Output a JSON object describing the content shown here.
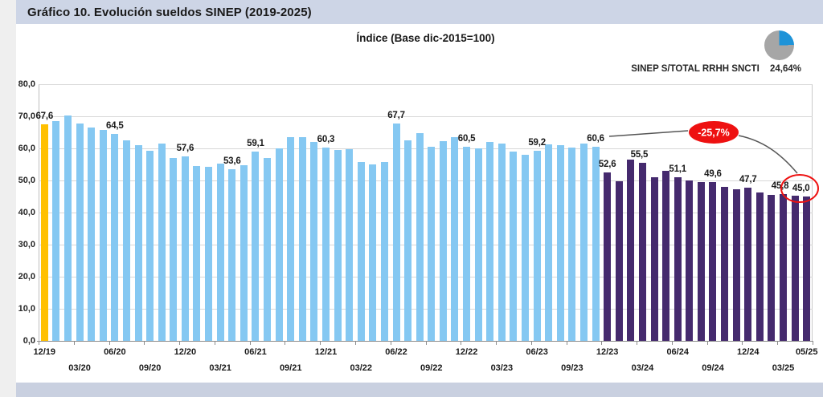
{
  "header": {
    "title": "Gráfico 10. Evolución sueldos SINEP (2019-2025)"
  },
  "note": {
    "label": "SINEP S/TOTAL RRHH SNCTI",
    "value": "24,64%"
  },
  "pie_icon": {
    "percent": 24.64,
    "accent_color": "#1e93d8",
    "base_color": "#a6a6a6"
  },
  "colors": {
    "first_bar": "#ffc000",
    "blue_bars": "#85c8f2",
    "purple_bars": "#452a6e",
    "annotation_red": "#ee1111",
    "connector": "#555555"
  },
  "chart_data": {
    "type": "bar",
    "title": "Índice (Base dic-2015=100)",
    "ylim": [
      0,
      80
    ],
    "grid": true,
    "y_tick_labels": [
      "80,0",
      "70,0",
      "60,0",
      "50,0",
      "40,0",
      "30,0",
      "20,0",
      "10,0",
      "0,0"
    ],
    "y_tick_values": [
      80,
      70,
      60,
      50,
      40,
      30,
      20,
      10,
      0
    ],
    "months": [
      "12/19",
      "01/20",
      "02/20",
      "03/20",
      "04/20",
      "05/20",
      "06/20",
      "07/20",
      "08/20",
      "09/20",
      "10/20",
      "11/20",
      "12/20",
      "01/21",
      "02/21",
      "03/21",
      "04/21",
      "05/21",
      "06/21",
      "07/21",
      "08/21",
      "09/21",
      "10/21",
      "11/21",
      "12/21",
      "01/22",
      "02/22",
      "03/22",
      "04/22",
      "05/22",
      "06/22",
      "07/22",
      "08/22",
      "09/22",
      "10/22",
      "11/22",
      "12/22",
      "01/23",
      "02/23",
      "03/23",
      "04/23",
      "05/23",
      "06/23",
      "07/23",
      "08/23",
      "09/23",
      "10/23",
      "11/23",
      "12/23",
      "01/24",
      "02/24",
      "03/24",
      "04/24",
      "05/24",
      "06/24",
      "07/24",
      "08/24",
      "09/24",
      "10/24",
      "11/24",
      "12/24",
      "01/25",
      "02/25",
      "03/25",
      "04/25",
      "05/25"
    ],
    "values": [
      67.6,
      68.6,
      70.3,
      67.8,
      66.4,
      65.7,
      64.5,
      62.5,
      61.1,
      59.3,
      61.4,
      56.9,
      57.6,
      54.6,
      54.3,
      55.3,
      53.6,
      54.7,
      59.1,
      57.0,
      60.0,
      63.4,
      63.5,
      62.0,
      60.3,
      59.5,
      59.8,
      55.8,
      54.9,
      55.8,
      67.7,
      62.5,
      64.7,
      60.6,
      62.2,
      63.4,
      60.5,
      60.0,
      62.0,
      61.6,
      59.1,
      57.9,
      59.2,
      61.2,
      60.9,
      60.2,
      61.6,
      60.6,
      52.6,
      49.7,
      56.4,
      55.5,
      51.0,
      52.9,
      51.1,
      50.0,
      49.4,
      49.6,
      47.9,
      47.3,
      47.7,
      46.2,
      45.6,
      45.8,
      45.2,
      45.0
    ],
    "segments": [
      {
        "start": 0,
        "end": 0,
        "color_key": "first_bar"
      },
      {
        "start": 1,
        "end": 47,
        "color_key": "blue_bars"
      },
      {
        "start": 48,
        "end": 65,
        "color_key": "purple_bars"
      }
    ],
    "data_labels": [
      {
        "index": 0,
        "text": "67,6"
      },
      {
        "index": 6,
        "text": "64,5"
      },
      {
        "index": 12,
        "text": "57,6"
      },
      {
        "index": 16,
        "text": "53,6"
      },
      {
        "index": 18,
        "text": "59,1"
      },
      {
        "index": 24,
        "text": "60,3"
      },
      {
        "index": 30,
        "text": "67,7"
      },
      {
        "index": 36,
        "text": "60,5"
      },
      {
        "index": 42,
        "text": "59,2"
      },
      {
        "index": 47,
        "text": "60,6"
      },
      {
        "index": 48,
        "text": "52,6"
      },
      {
        "index": 51,
        "text": "55,5",
        "dx": -4
      },
      {
        "index": 54,
        "text": "51,1"
      },
      {
        "index": 57,
        "text": "49,6"
      },
      {
        "index": 60,
        "text": "47,7"
      },
      {
        "index": 63,
        "text": "45,8",
        "dx": -4
      },
      {
        "index": 65,
        "text": "45,0",
        "dx": -7
      }
    ],
    "x_ticks_top": [
      {
        "index": 0,
        "label": "12/19"
      },
      {
        "index": 6,
        "label": "06/20"
      },
      {
        "index": 12,
        "label": "12/20"
      },
      {
        "index": 18,
        "label": "06/21"
      },
      {
        "index": 24,
        "label": "12/21"
      },
      {
        "index": 30,
        "label": "06/22"
      },
      {
        "index": 36,
        "label": "12/22"
      },
      {
        "index": 42,
        "label": "06/23"
      },
      {
        "index": 48,
        "label": "12/23"
      },
      {
        "index": 54,
        "label": "06/24"
      },
      {
        "index": 60,
        "label": "12/24"
      },
      {
        "index": 65,
        "label": "05/25"
      }
    ],
    "x_ticks_bottom": [
      {
        "index": 3,
        "label": "03/20"
      },
      {
        "index": 9,
        "label": "09/20"
      },
      {
        "index": 15,
        "label": "03/21"
      },
      {
        "index": 21,
        "label": "09/21"
      },
      {
        "index": 27,
        "label": "03/22"
      },
      {
        "index": 33,
        "label": "09/22"
      },
      {
        "index": 39,
        "label": "03/23"
      },
      {
        "index": 45,
        "label": "09/23"
      },
      {
        "index": 51,
        "label": "03/24"
      },
      {
        "index": 57,
        "label": "09/24"
      },
      {
        "index": 63,
        "label": "03/25"
      }
    ],
    "annotations": {
      "drop_label": "-25,7%",
      "highlighted_point": {
        "month": "05/25",
        "text": "45,0"
      }
    },
    "legend_position": "none"
  }
}
